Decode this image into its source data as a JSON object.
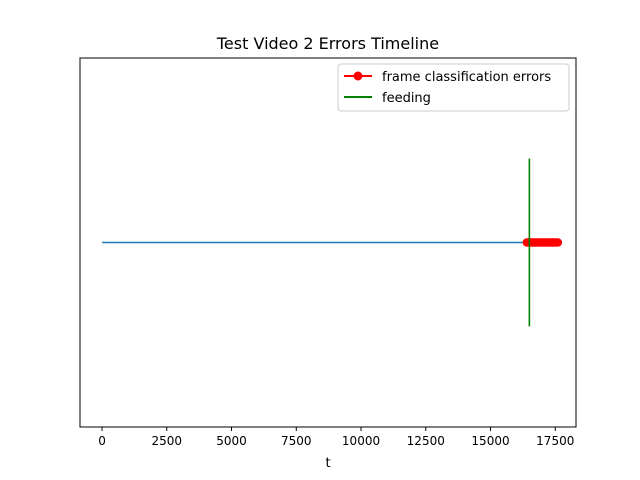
{
  "chart_data": {
    "type": "line",
    "title": "Test Video 2 Errors Timeline",
    "xlabel": "t",
    "ylabel": "",
    "xlim": [
      -850,
      18300
    ],
    "ylim": [
      -1.1,
      1.1
    ],
    "xticks": [
      0,
      2500,
      5000,
      7500,
      10000,
      12500,
      15000,
      17500
    ],
    "yticks": [],
    "grid": false,
    "legend_position": "top-right",
    "series": [
      {
        "name": "",
        "kind": "line",
        "color": "#1f77b4",
        "x": [
          0,
          17600
        ],
        "y": [
          0,
          0
        ]
      },
      {
        "name": "frame classification errors",
        "kind": "line-marker",
        "color": "#ff0000",
        "x": [
          16400,
          16450,
          16500,
          16550,
          16600,
          16650,
          16700,
          16750,
          16800,
          16850,
          16900,
          16950,
          17000,
          17050,
          17100,
          17150,
          17200,
          17250,
          17300,
          17350,
          17400,
          17450,
          17500,
          17550,
          17600
        ],
        "y": [
          0,
          0,
          0,
          0,
          0,
          0,
          0,
          0,
          0,
          0,
          0,
          0,
          0,
          0,
          0,
          0,
          0,
          0,
          0,
          0,
          0,
          0,
          0,
          0,
          0
        ]
      },
      {
        "name": "feeding",
        "kind": "vline",
        "color": "#008000",
        "x": [
          16500,
          16500
        ],
        "y": [
          -0.5,
          0.5
        ]
      }
    ]
  }
}
